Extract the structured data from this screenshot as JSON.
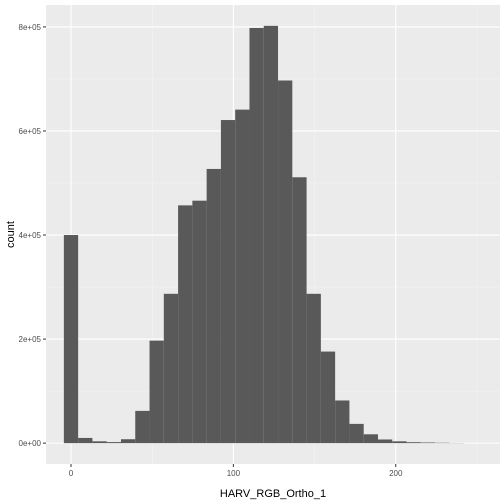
{
  "chart_data": {
    "type": "bar",
    "title": "",
    "xlabel": "HARV_RGB_Ortho_1",
    "ylabel": "count",
    "bin_width": 8.793,
    "bins": [
      {
        "x": 0.0,
        "count": 400000
      },
      {
        "x": 8.793,
        "count": 10000
      },
      {
        "x": 17.586,
        "count": 3500
      },
      {
        "x": 26.379,
        "count": 2000
      },
      {
        "x": 35.172,
        "count": 7500
      },
      {
        "x": 43.966,
        "count": 62000
      },
      {
        "x": 52.759,
        "count": 197000
      },
      {
        "x": 61.552,
        "count": 287000
      },
      {
        "x": 70.345,
        "count": 457000
      },
      {
        "x": 79.138,
        "count": 466000
      },
      {
        "x": 87.931,
        "count": 527000
      },
      {
        "x": 96.724,
        "count": 621000
      },
      {
        "x": 105.517,
        "count": 641000
      },
      {
        "x": 114.31,
        "count": 798000
      },
      {
        "x": 123.103,
        "count": 802000
      },
      {
        "x": 131.897,
        "count": 697000
      },
      {
        "x": 140.69,
        "count": 511000
      },
      {
        "x": 149.483,
        "count": 287000
      },
      {
        "x": 158.276,
        "count": 176000
      },
      {
        "x": 167.069,
        "count": 82000
      },
      {
        "x": 175.862,
        "count": 37000
      },
      {
        "x": 184.655,
        "count": 17000
      },
      {
        "x": 193.448,
        "count": 7000
      },
      {
        "x": 202.241,
        "count": 3500
      },
      {
        "x": 211.034,
        "count": 1800
      },
      {
        "x": 219.828,
        "count": 1200
      },
      {
        "x": 228.621,
        "count": 700
      },
      {
        "x": 237.414,
        "count": 300
      }
    ],
    "xlim": [
      -15.4,
      264.2
    ],
    "ylim": [
      -40100,
      842100
    ],
    "x_ticks": [
      0,
      100,
      200
    ],
    "x_tick_labels": [
      "0",
      "100",
      "200"
    ],
    "y_ticks": [
      0,
      200000,
      400000,
      600000,
      800000
    ],
    "y_tick_labels": [
      "0e+00",
      "2e+05",
      "4e+05",
      "6e+05",
      "8e+05"
    ],
    "grid": true,
    "colors": {
      "bar": "#595959",
      "panel": "#ebebeb",
      "grid_major": "#ffffff",
      "grid_minor": "#f5f5f5"
    }
  }
}
